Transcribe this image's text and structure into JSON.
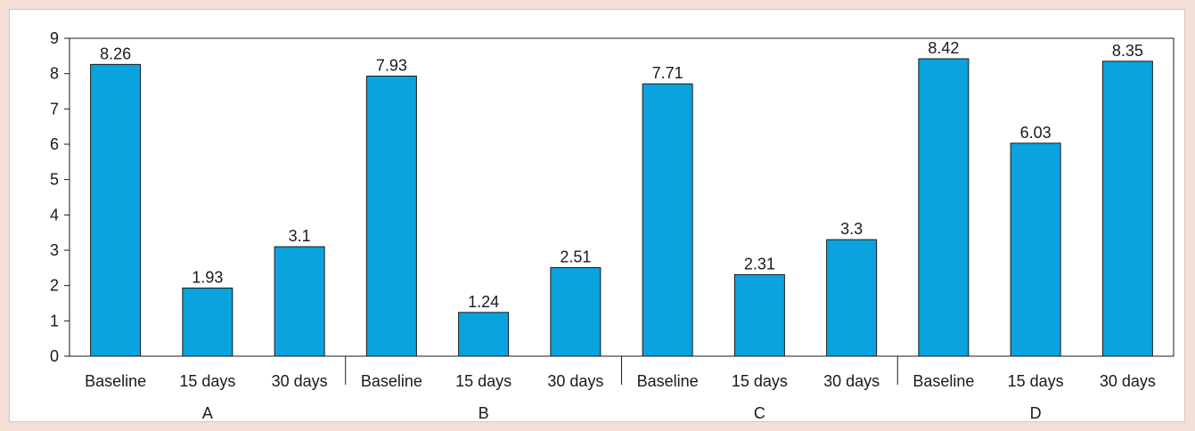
{
  "chart_data": {
    "type": "bar",
    "title": "",
    "xlabel": "",
    "ylabel": "",
    "ylim": [
      0,
      9
    ],
    "yticks": [
      0,
      1,
      2,
      3,
      4,
      5,
      6,
      7,
      8,
      9
    ],
    "grid": false,
    "legend": "none",
    "bar_color": "#0aa3dd",
    "bar_edge_color": "#1a1a1a",
    "groups": [
      {
        "name": "A",
        "bars": [
          {
            "label": "Baseline",
            "value": 8.26,
            "value_label": "8.26"
          },
          {
            "label": "15 days",
            "value": 1.93,
            "value_label": "1.93"
          },
          {
            "label": "30 days",
            "value": 3.1,
            "value_label": "3.1"
          }
        ]
      },
      {
        "name": "B",
        "bars": [
          {
            "label": "Baseline",
            "value": 7.93,
            "value_label": "7.93"
          },
          {
            "label": "15 days",
            "value": 1.24,
            "value_label": "1.24"
          },
          {
            "label": "30 days",
            "value": 2.51,
            "value_label": "2.51"
          }
        ]
      },
      {
        "name": "C",
        "bars": [
          {
            "label": "Baseline",
            "value": 7.71,
            "value_label": "7.71"
          },
          {
            "label": "15 days",
            "value": 2.31,
            "value_label": "2.31"
          },
          {
            "label": "30 days",
            "value": 3.3,
            "value_label": "3.3"
          }
        ]
      },
      {
        "name": "D",
        "bars": [
          {
            "label": "Baseline",
            "value": 8.42,
            "value_label": "8.42"
          },
          {
            "label": "15 days",
            "value": 6.03,
            "value_label": "6.03"
          },
          {
            "label": "30 days",
            "value": 8.35,
            "value_label": "8.35"
          }
        ]
      }
    ]
  }
}
